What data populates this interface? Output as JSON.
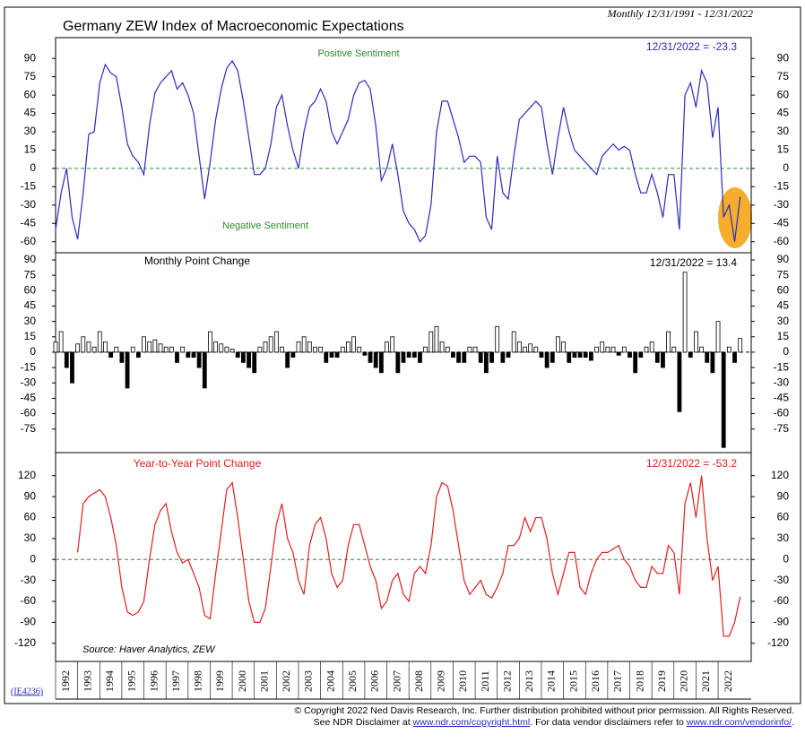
{
  "header": {
    "subtitle": "Monthly 12/31/1991 - 12/31/2022",
    "code": "(IE4236)"
  },
  "footer": {
    "copyright": "© Copyright 2022 Ned Davis Research, Inc.  Further distribution prohibited without prior permission.  All Rights Reserved.",
    "see": "See NDR Disclaimer at ",
    "link1": "www.ndr.com/copyright.html",
    "mid": ". For data vendor disclaimers refer to ",
    "link2": "www.ndr.com/vendorinfo/",
    "end": "."
  },
  "chart_data": [
    {
      "type": "line",
      "title": "Germany ZEW Index of Macroeconomic Expectations",
      "last_label": "12/31/2022 = -23.3",
      "annotations": [
        "Positive Sentiment",
        "Negative Sentiment"
      ],
      "color": "#2b2bc0",
      "hline": 0,
      "hline_color": "#2e8b2e",
      "xlim": [
        1992,
        2023.5
      ],
      "ylim": [
        -69,
        107
      ],
      "yticks": [
        -60,
        -45,
        -30,
        -15,
        0,
        15,
        30,
        45,
        60,
        75,
        90
      ],
      "x": [
        1992,
        1992.25,
        1992.5,
        1992.75,
        1993,
        1993.25,
        1993.5,
        1993.75,
        1994,
        1994.25,
        1994.5,
        1994.75,
        1995,
        1995.25,
        1995.5,
        1995.75,
        1996,
        1996.25,
        1996.5,
        1996.75,
        1997,
        1997.25,
        1997.5,
        1997.75,
        1998,
        1998.25,
        1998.5,
        1998.75,
        1999,
        1999.25,
        1999.5,
        1999.75,
        2000,
        2000.25,
        2000.5,
        2000.75,
        2001,
        2001.25,
        2001.5,
        2001.75,
        2002,
        2002.25,
        2002.5,
        2002.75,
        2003,
        2003.25,
        2003.5,
        2003.75,
        2004,
        2004.25,
        2004.5,
        2004.75,
        2005,
        2005.25,
        2005.5,
        2005.75,
        2006,
        2006.25,
        2006.5,
        2006.75,
        2007,
        2007.25,
        2007.5,
        2007.75,
        2008,
        2008.25,
        2008.5,
        2008.75,
        2009,
        2009.25,
        2009.5,
        2009.75,
        2010,
        2010.25,
        2010.5,
        2010.75,
        2011,
        2011.25,
        2011.5,
        2011.75,
        2012,
        2012.25,
        2012.5,
        2012.75,
        2013,
        2013.25,
        2013.5,
        2013.75,
        2014,
        2014.25,
        2014.5,
        2014.75,
        2015,
        2015.25,
        2015.5,
        2015.75,
        2016,
        2016.25,
        2016.5,
        2016.75,
        2017,
        2017.25,
        2017.5,
        2017.75,
        2018,
        2018.25,
        2018.5,
        2018.75,
        2019,
        2019.25,
        2019.5,
        2019.75,
        2020,
        2020.25,
        2020.5,
        2020.75,
        2021,
        2021.25,
        2021.5,
        2021.75,
        2022,
        2022.25,
        2022.5,
        2022.75,
        2023
      ],
      "values": [
        -50,
        -20,
        0,
        -40,
        -58,
        -20,
        28,
        30,
        70,
        85,
        78,
        75,
        50,
        20,
        10,
        5,
        -5,
        35,
        62,
        70,
        75,
        80,
        65,
        70,
        60,
        45,
        10,
        -25,
        5,
        40,
        65,
        82,
        88,
        80,
        55,
        25,
        -5,
        -5,
        0,
        20,
        50,
        60,
        35,
        15,
        0,
        30,
        50,
        55,
        65,
        55,
        30,
        20,
        30,
        40,
        60,
        70,
        72,
        65,
        35,
        -10,
        0,
        20,
        -5,
        -35,
        -45,
        -50,
        -60,
        -55,
        -30,
        30,
        55,
        55,
        40,
        25,
        5,
        10,
        10,
        5,
        -40,
        -50,
        10,
        -20,
        -25,
        10,
        40,
        45,
        50,
        55,
        50,
        20,
        -5,
        25,
        50,
        30,
        15,
        10,
        5,
        0,
        -5,
        10,
        15,
        20,
        15,
        18,
        15,
        -5,
        -20,
        -20,
        -5,
        -20,
        -40,
        -5,
        -5,
        -50,
        60,
        70,
        50,
        80,
        70,
        25,
        50,
        -40,
        -30,
        -60,
        -23.3
      ]
    },
    {
      "type": "bar",
      "title": "Monthly Point Change",
      "last_label": "12/31/2022 = 13.4",
      "color": "#000000",
      "fill": "#ffffff",
      "hline": 0,
      "hline_color": "#000000",
      "xlim": [
        1992,
        2023.5
      ],
      "ylim": [
        -98,
        97
      ],
      "yticks": [
        -75,
        -60,
        -45,
        -30,
        -15,
        0,
        15,
        30,
        45,
        60,
        75,
        90
      ],
      "x": [
        1992,
        1992.25,
        1992.5,
        1992.75,
        1993,
        1993.25,
        1993.5,
        1993.75,
        1994,
        1994.25,
        1994.5,
        1994.75,
        1995,
        1995.25,
        1995.5,
        1995.75,
        1996,
        1996.25,
        1996.5,
        1996.75,
        1997,
        1997.25,
        1997.5,
        1997.75,
        1998,
        1998.25,
        1998.5,
        1998.75,
        1999,
        1999.25,
        1999.5,
        1999.75,
        2000,
        2000.25,
        2000.5,
        2000.75,
        2001,
        2001.25,
        2001.5,
        2001.75,
        2002,
        2002.25,
        2002.5,
        2002.75,
        2003,
        2003.25,
        2003.5,
        2003.75,
        2004,
        2004.25,
        2004.5,
        2004.75,
        2005,
        2005.25,
        2005.5,
        2005.75,
        2006,
        2006.25,
        2006.5,
        2006.75,
        2007,
        2007.25,
        2007.5,
        2007.75,
        2008,
        2008.25,
        2008.5,
        2008.75,
        2009,
        2009.25,
        2009.5,
        2009.75,
        2010,
        2010.25,
        2010.5,
        2010.75,
        2011,
        2011.25,
        2011.5,
        2011.75,
        2012,
        2012.25,
        2012.5,
        2012.75,
        2013,
        2013.25,
        2013.5,
        2013.75,
        2014,
        2014.25,
        2014.5,
        2014.75,
        2015,
        2015.25,
        2015.5,
        2015.75,
        2016,
        2016.25,
        2016.5,
        2016.75,
        2017,
        2017.25,
        2017.5,
        2017.75,
        2018,
        2018.25,
        2018.5,
        2018.75,
        2019,
        2019.25,
        2019.5,
        2019.75,
        2020,
        2020.25,
        2020.5,
        2020.75,
        2021,
        2021.25,
        2021.5,
        2021.75,
        2022,
        2022.25,
        2022.5,
        2022.75,
        2023
      ],
      "values": [
        10,
        20,
        -15,
        -30,
        8,
        15,
        10,
        5,
        20,
        10,
        -5,
        5,
        -10,
        -35,
        5,
        -5,
        15,
        10,
        12,
        8,
        5,
        5,
        -10,
        5,
        -5,
        -5,
        -15,
        -35,
        20,
        10,
        8,
        5,
        3,
        -5,
        -10,
        -15,
        -20,
        5,
        10,
        15,
        20,
        5,
        -15,
        -5,
        10,
        15,
        10,
        5,
        5,
        -10,
        -5,
        -5,
        5,
        10,
        15,
        5,
        -3,
        -10,
        -15,
        -20,
        10,
        15,
        -20,
        -10,
        -5,
        -5,
        -10,
        5,
        20,
        25,
        10,
        5,
        -5,
        -10,
        -10,
        5,
        5,
        -10,
        -20,
        -10,
        25,
        -10,
        -5,
        20,
        10,
        5,
        8,
        5,
        -5,
        -15,
        -10,
        15,
        10,
        -10,
        -5,
        -5,
        -5,
        -8,
        5,
        10,
        5,
        5,
        -3,
        5,
        -5,
        -20,
        -5,
        5,
        10,
        -10,
        -15,
        20,
        5,
        -58,
        78,
        -5,
        20,
        5,
        -10,
        -20,
        30,
        -93,
        5,
        -10,
        13.4
      ]
    },
    {
      "type": "line",
      "title": "Year-to-Year Point Change",
      "last_label": "12/31/2022 = -53.2",
      "source": "Source: Haver Analytics, ZEW",
      "color": "#e02020",
      "hline": 0,
      "hline_color": "#2e8b2e",
      "xlim": [
        1992,
        2023.5
      ],
      "ylim": [
        -146,
        153
      ],
      "yticks": [
        -120,
        -90,
        -60,
        -30,
        0,
        30,
        60,
        90,
        120
      ],
      "xticks": [
        1992,
        1993,
        1994,
        1995,
        1996,
        1997,
        1998,
        1999,
        2000,
        2001,
        2002,
        2003,
        2004,
        2005,
        2006,
        2007,
        2008,
        2009,
        2010,
        2011,
        2012,
        2013,
        2014,
        2015,
        2016,
        2017,
        2018,
        2019,
        2020,
        2021,
        2022
      ],
      "x": [
        1993,
        1993.25,
        1993.5,
        1993.75,
        1994,
        1994.25,
        1994.5,
        1994.75,
        1995,
        1995.25,
        1995.5,
        1995.75,
        1996,
        1996.25,
        1996.5,
        1996.75,
        1997,
        1997.25,
        1997.5,
        1997.75,
        1998,
        1998.25,
        1998.5,
        1998.75,
        1999,
        1999.25,
        1999.5,
        1999.75,
        2000,
        2000.25,
        2000.5,
        2000.75,
        2001,
        2001.25,
        2001.5,
        2001.75,
        2002,
        2002.25,
        2002.5,
        2002.75,
        2003,
        2003.25,
        2003.5,
        2003.75,
        2004,
        2004.25,
        2004.5,
        2004.75,
        2005,
        2005.25,
        2005.5,
        2005.75,
        2006,
        2006.25,
        2006.5,
        2006.75,
        2007,
        2007.25,
        2007.5,
        2007.75,
        2008,
        2008.25,
        2008.5,
        2008.75,
        2009,
        2009.25,
        2009.5,
        2009.75,
        2010,
        2010.25,
        2010.5,
        2010.75,
        2011,
        2011.25,
        2011.5,
        2011.75,
        2012,
        2012.25,
        2012.5,
        2012.75,
        2013,
        2013.25,
        2013.5,
        2013.75,
        2014,
        2014.25,
        2014.5,
        2014.75,
        2015,
        2015.25,
        2015.5,
        2015.75,
        2016,
        2016.25,
        2016.5,
        2016.75,
        2017,
        2017.25,
        2017.5,
        2017.75,
        2018,
        2018.25,
        2018.5,
        2018.75,
        2019,
        2019.25,
        2019.5,
        2019.75,
        2020,
        2020.25,
        2020.5,
        2020.75,
        2021,
        2021.25,
        2021.5,
        2021.75,
        2022,
        2022.25,
        2022.5,
        2022.75,
        2023
      ],
      "values": [
        10,
        80,
        90,
        95,
        100,
        90,
        60,
        20,
        -40,
        -75,
        -80,
        -75,
        -60,
        0,
        50,
        70,
        80,
        40,
        10,
        -5,
        0,
        -20,
        -40,
        -80,
        -85,
        -20,
        40,
        100,
        110,
        60,
        0,
        -60,
        -90,
        -90,
        -70,
        -10,
        50,
        80,
        30,
        10,
        -30,
        -50,
        20,
        50,
        60,
        30,
        -20,
        -40,
        -30,
        20,
        50,
        50,
        20,
        -10,
        -30,
        -70,
        -60,
        -30,
        -20,
        -50,
        -60,
        -20,
        -10,
        -20,
        20,
        90,
        110,
        105,
        70,
        20,
        -30,
        -50,
        -40,
        -30,
        -50,
        -55,
        -40,
        -20,
        20,
        20,
        30,
        60,
        40,
        60,
        60,
        30,
        -20,
        -50,
        -20,
        10,
        10,
        -40,
        -50,
        -20,
        0,
        10,
        10,
        15,
        20,
        0,
        -10,
        -30,
        -40,
        -40,
        -10,
        -20,
        -20,
        20,
        10,
        -50,
        80,
        110,
        60,
        120,
        30,
        -30,
        -10,
        -110,
        -110,
        -90,
        -53.2
      ]
    }
  ]
}
